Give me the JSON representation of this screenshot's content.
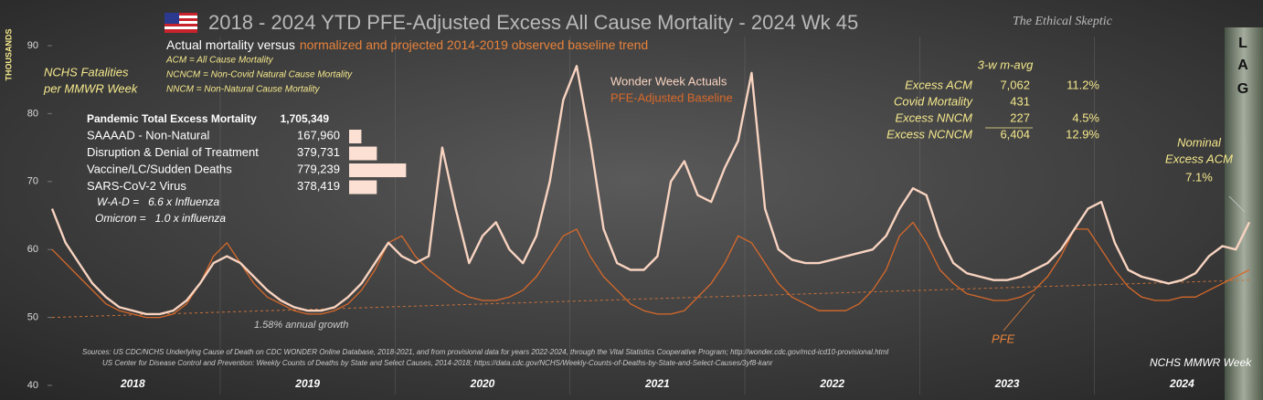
{
  "chart_data": {
    "type": "line",
    "title": "2018 - 2024 YTD PFE-Adjusted Excess All Cause Mortality - 2024 Wk 45",
    "subtitle_a": "Actual mortality versus",
    "subtitle_b": "normalized and projected 2014-2019 observed baseline trend",
    "author": "The Ethical Skeptic",
    "y_unit": "THOUSANDS",
    "y_label_1": "NCHS Fatalities",
    "y_label_2": "per MMWR Week",
    "x_label": "NCHS MMWR Week",
    "definitions": [
      "ACM = All Cause Mortality",
      "NCNCM = Non-Covid Natural Cause Mortality",
      "NNCM = Non-Natural Cause Mortality"
    ],
    "ylim": [
      40,
      92
    ],
    "yticks": [
      40,
      50,
      60,
      70,
      80,
      90
    ],
    "categories": [
      null,
      null,
      null,
      null,
      null,
      null,
      "2018",
      null,
      null,
      null,
      null,
      null,
      null,
      null,
      null,
      null,
      null,
      null,
      null,
      "2019",
      null,
      null,
      null,
      null,
      null,
      null,
      null,
      null,
      null,
      null,
      null,
      null,
      "2020",
      null,
      null,
      null,
      null,
      null,
      null,
      null,
      null,
      null,
      null,
      null,
      null,
      "2021",
      null,
      null,
      null,
      null,
      null,
      null,
      null,
      null,
      null,
      null,
      null,
      null,
      "2022",
      null,
      null,
      null,
      null,
      null,
      null,
      null,
      null,
      null,
      null,
      null,
      null,
      "2023",
      null,
      null,
      null,
      null,
      null,
      null,
      null,
      null,
      null,
      null,
      null,
      null,
      "2024",
      null,
      null,
      null,
      null,
      null
    ],
    "series": [
      {
        "name": "Wonder Week Actuals",
        "color": "#f8d3c0",
        "values": [
          66,
          61,
          58,
          55,
          53,
          51.5,
          51,
          50.5,
          50.5,
          51,
          52.5,
          55,
          58,
          59,
          58,
          56,
          54,
          52.5,
          51.5,
          51,
          51,
          51.5,
          53,
          55,
          58,
          61,
          59,
          58,
          59,
          75,
          66,
          58,
          62,
          64,
          60,
          58,
          62,
          70,
          82,
          87,
          76,
          63,
          58,
          57,
          57,
          59,
          70,
          73,
          68,
          67,
          72,
          76,
          86,
          66,
          60,
          58.5,
          58,
          58,
          58.5,
          59,
          59.5,
          60,
          62,
          66,
          69,
          68,
          62,
          58,
          56.5,
          56,
          55.5,
          55.5,
          56,
          57,
          58,
          60,
          63,
          66,
          67,
          61,
          57,
          56,
          55.5,
          55,
          55.5,
          56.5,
          59,
          60.5,
          60,
          64
        ]
      },
      {
        "name": "PFE-Adjusted Baseline",
        "color": "#d8692a",
        "values": [
          60,
          58,
          56,
          54,
          52,
          51,
          50.5,
          50,
          50,
          50.5,
          52,
          55,
          59,
          61,
          58,
          55,
          53,
          52,
          51,
          50.5,
          50.5,
          51,
          52,
          54,
          57,
          61,
          62,
          59,
          57,
          55.5,
          54,
          53,
          52.5,
          52.5,
          53,
          54,
          56,
          59,
          62,
          63,
          59,
          56,
          54,
          52,
          51,
          50.5,
          50.5,
          51,
          53,
          55,
          58,
          62,
          61,
          58,
          55,
          53,
          52,
          51,
          51,
          51,
          52,
          54,
          57,
          62,
          64,
          61,
          57,
          55,
          53.5,
          53,
          52.5,
          52.5,
          53,
          54,
          56,
          59,
          63,
          63,
          60,
          57,
          54.5,
          53,
          52.5,
          52.5,
          53,
          53,
          54,
          55,
          56,
          57
        ]
      }
    ],
    "trend": {
      "values": [
        50,
        55.5
      ],
      "label": "1.58% annual growth"
    },
    "pfe_label": "PFE",
    "lag_label": [
      "L",
      "A",
      "G"
    ],
    "nominal": {
      "label_1": "Nominal",
      "label_2": "Excess ACM",
      "value": "7.1%"
    },
    "pandemic": {
      "title": "Pandemic Total Excess Mortality",
      "total": "1,705,349",
      "rows": [
        {
          "label": "SAAAAD - Non-Natural",
          "value": 167960,
          "value_label": "167,960"
        },
        {
          "label": "Disruption & Denial of Treatment",
          "value": 379731,
          "value_label": "379,731"
        },
        {
          "label": "Vaccine/LC/Sudden Deaths",
          "value": 779239,
          "value_label": "779,239"
        },
        {
          "label": "SARS-CoV-2 Virus",
          "value": 378419,
          "value_label": "378,419"
        }
      ],
      "notes": [
        "W-A-D =   6.6 x Influenza",
        "Omicron =   1.0 x influenza"
      ]
    },
    "excess": {
      "title": "3-w m-avg",
      "rows": [
        {
          "label": "Excess ACM",
          "value": "7,062",
          "pct": "11.2%"
        },
        {
          "label": "Covid Mortality",
          "value": "431"
        },
        {
          "label": "Excess NNCM",
          "value": "227",
          "pct": "4.5%"
        },
        {
          "label": "Excess NCNCM",
          "value": "6,404",
          "pct": "12.9%"
        }
      ]
    },
    "sources": [
      "Sources:   US CDC/NCHS Underlying  Cause of Death on CDC WONDER Online Database, 2018-2021, and from provisional data for years 2022-2024, through the Vital Statistics Cooperative Program; http://wonder.cdc.gov/mcd-icd10-provisional.html",
      "US Center for Disease Control and Prevention: Weekly  Counts of Deaths by State and Select Causes, 2014-2018; https://data.cdc.gov/NCHS/Weekly-Counts-of-Deaths-by-State-and-Select-Causes/3yf8-kanr"
    ]
  }
}
